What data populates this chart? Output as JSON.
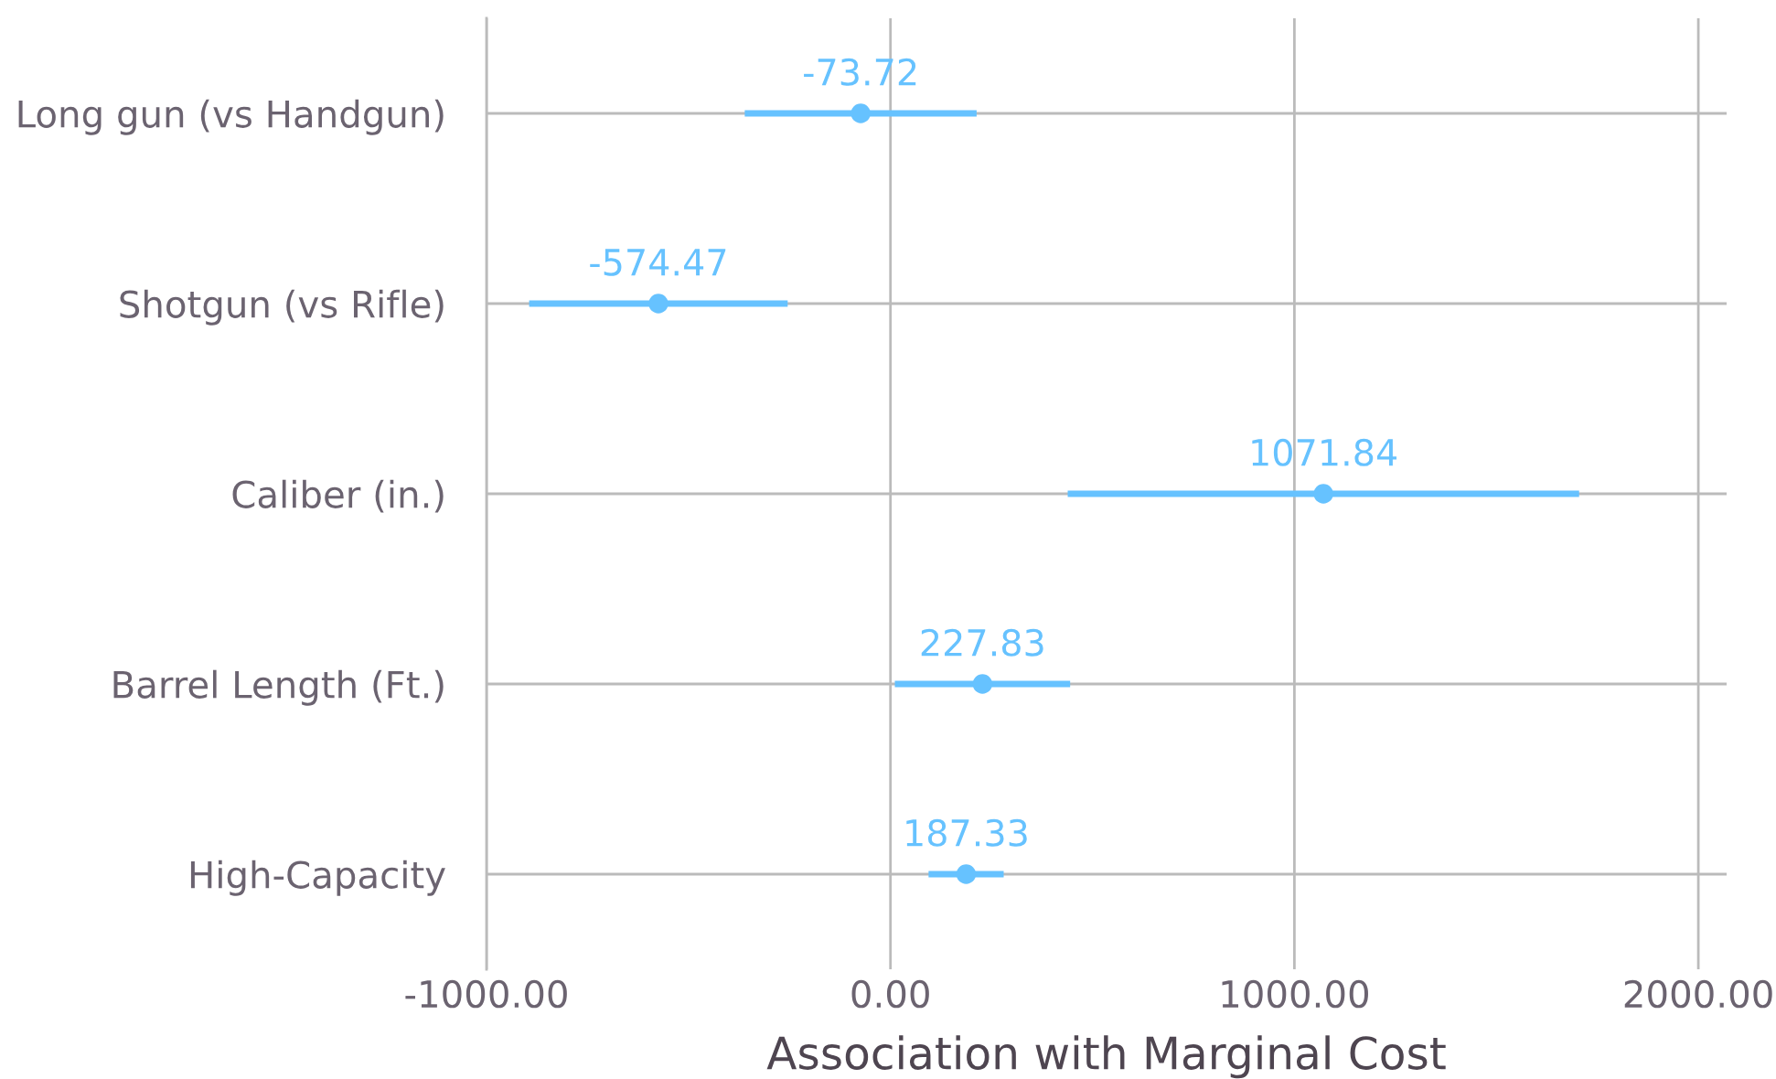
{
  "chart_data": {
    "type": "scatter",
    "orientation": "horizontal",
    "categories": [
      "Long gun (vs Handgun)",
      "Shotgun (vs Rifle)",
      "Caliber (in.)",
      "Barrel Length (Ft.)",
      "High-Capacity"
    ],
    "values": [
      -73.72,
      -574.47,
      1071.84,
      227.83,
      187.33
    ],
    "errors": [
      287,
      320,
      633,
      217,
      93
    ],
    "color": "#66c2ff",
    "marker": "circle",
    "data_labels": true,
    "xlabel": "Association with Marginal Cost",
    "xlim": [
      -1000,
      2070
    ],
    "xticks": [
      {
        "value": -1000,
        "label": "-1000.00"
      },
      {
        "value": 0,
        "label": "0.00"
      },
      {
        "value": 1000,
        "label": "1000.00"
      },
      {
        "value": 2000,
        "label": "2000.00"
      }
    ],
    "grid": true
  }
}
